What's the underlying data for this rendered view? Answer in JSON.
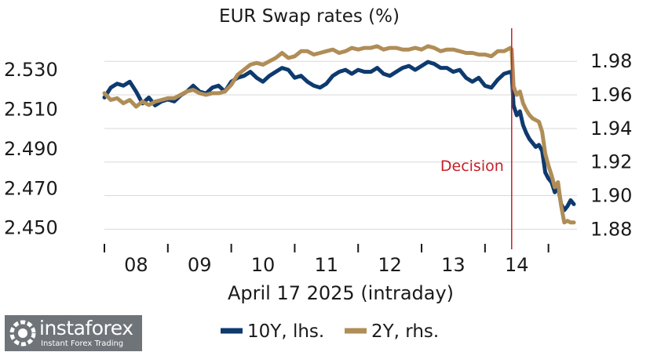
{
  "chart_data": {
    "type": "line",
    "title": "EUR Swap rates (%)",
    "xlabel": "April 17 2025 (intraday)",
    "x_ticks": [
      "08",
      "09",
      "10",
      "11",
      "12",
      "13",
      "14"
    ],
    "x_range": [
      7.5,
      14.95
    ],
    "y_left": {
      "ticks": [
        "2.530",
        "2.510",
        "2.490",
        "2.470",
        "2.450"
      ],
      "range": [
        2.4455,
        2.5475
      ]
    },
    "y_right": {
      "ticks": [
        "1.98",
        "1.96",
        "1.94",
        "1.92",
        "1.90",
        "1.88"
      ],
      "range": [
        1.8755,
        1.9955
      ]
    },
    "grid": true,
    "legend_position": "bottom",
    "annotation": {
      "label": "Decision",
      "x": 13.92,
      "color": "#c8202a"
    },
    "series": [
      {
        "name": "10Y, lhs.",
        "axis": "left",
        "color": "#0e3a6e",
        "x": [
          7.5,
          7.6,
          7.7,
          7.8,
          7.9,
          8.0,
          8.1,
          8.2,
          8.3,
          8.4,
          8.5,
          8.6,
          8.7,
          8.8,
          8.9,
          9.0,
          9.1,
          9.2,
          9.3,
          9.4,
          9.5,
          9.6,
          9.7,
          9.8,
          9.9,
          10.0,
          10.1,
          10.2,
          10.3,
          10.4,
          10.5,
          10.6,
          10.7,
          10.8,
          10.9,
          11.0,
          11.1,
          11.2,
          11.3,
          11.4,
          11.5,
          11.6,
          11.7,
          11.8,
          11.9,
          12.0,
          12.1,
          12.2,
          12.3,
          12.4,
          12.5,
          12.6,
          12.7,
          12.8,
          12.9,
          13.0,
          13.1,
          13.2,
          13.3,
          13.4,
          13.5,
          13.6,
          13.7,
          13.8,
          13.9,
          13.92,
          13.95,
          14.0,
          14.05,
          14.1,
          14.15,
          14.2,
          14.25,
          14.3,
          14.35,
          14.4,
          14.45,
          14.5,
          14.55,
          14.6,
          14.65,
          14.7,
          14.75,
          14.8,
          14.85,
          14.9
        ],
        "values": [
          2.516,
          2.521,
          2.523,
          2.522,
          2.524,
          2.519,
          2.513,
          2.516,
          2.512,
          2.514,
          2.515,
          2.514,
          2.517,
          2.519,
          2.522,
          2.519,
          2.518,
          2.521,
          2.522,
          2.519,
          2.524,
          2.526,
          2.527,
          2.529,
          2.526,
          2.524,
          2.527,
          2.529,
          2.531,
          2.53,
          2.526,
          2.527,
          2.524,
          2.522,
          2.521,
          2.523,
          2.527,
          2.529,
          2.53,
          2.528,
          2.53,
          2.529,
          2.529,
          2.531,
          2.528,
          2.527,
          2.529,
          2.531,
          2.532,
          2.53,
          2.532,
          2.534,
          2.533,
          2.531,
          2.531,
          2.529,
          2.53,
          2.526,
          2.524,
          2.526,
          2.522,
          2.521,
          2.525,
          2.528,
          2.529,
          2.529,
          2.512,
          2.507,
          2.509,
          2.502,
          2.498,
          2.495,
          2.493,
          2.491,
          2.492,
          2.489,
          2.478,
          2.475,
          2.473,
          2.468,
          2.471,
          2.462,
          2.459,
          2.461,
          2.464,
          2.462
        ]
      },
      {
        "name": "2Y, rhs.",
        "axis": "right",
        "color": "#b08d57",
        "x": [
          7.5,
          7.6,
          7.7,
          7.8,
          7.9,
          8.0,
          8.1,
          8.2,
          8.3,
          8.4,
          8.5,
          8.6,
          8.7,
          8.8,
          8.9,
          9.0,
          9.1,
          9.2,
          9.3,
          9.4,
          9.5,
          9.6,
          9.7,
          9.8,
          9.9,
          10.0,
          10.1,
          10.2,
          10.3,
          10.4,
          10.5,
          10.6,
          10.7,
          10.8,
          10.9,
          11.0,
          11.1,
          11.2,
          11.3,
          11.4,
          11.5,
          11.6,
          11.7,
          11.8,
          11.9,
          12.0,
          12.1,
          12.2,
          12.3,
          12.4,
          12.5,
          12.6,
          12.7,
          12.8,
          12.9,
          13.0,
          13.1,
          13.2,
          13.3,
          13.4,
          13.5,
          13.6,
          13.7,
          13.8,
          13.9,
          13.92,
          13.95,
          14.0,
          14.05,
          14.1,
          14.15,
          14.2,
          14.25,
          14.3,
          14.35,
          14.4,
          14.45,
          14.5,
          14.55,
          14.6,
          14.65,
          14.7,
          14.75,
          14.8,
          14.85,
          14.9
        ],
        "values": [
          1.961,
          1.957,
          1.958,
          1.955,
          1.957,
          1.953,
          1.956,
          1.954,
          1.956,
          1.957,
          1.958,
          1.958,
          1.96,
          1.962,
          1.963,
          1.961,
          1.96,
          1.961,
          1.961,
          1.962,
          1.966,
          1.972,
          1.975,
          1.978,
          1.979,
          1.978,
          1.98,
          1.982,
          1.985,
          1.982,
          1.983,
          1.986,
          1.986,
          1.984,
          1.985,
          1.986,
          1.987,
          1.985,
          1.986,
          1.988,
          1.987,
          1.988,
          1.988,
          1.989,
          1.987,
          1.988,
          1.988,
          1.987,
          1.987,
          1.988,
          1.987,
          1.989,
          1.988,
          1.986,
          1.987,
          1.987,
          1.986,
          1.985,
          1.985,
          1.984,
          1.984,
          1.983,
          1.986,
          1.986,
          1.988,
          1.987,
          1.965,
          1.96,
          1.962,
          1.955,
          1.951,
          1.948,
          1.946,
          1.945,
          1.944,
          1.938,
          1.925,
          1.918,
          1.912,
          1.905,
          1.908,
          1.894,
          1.884,
          1.885,
          1.884,
          1.884
        ]
      }
    ]
  },
  "branding": {
    "name": "instaforex",
    "tagline": "Instant Forex Trading"
  }
}
